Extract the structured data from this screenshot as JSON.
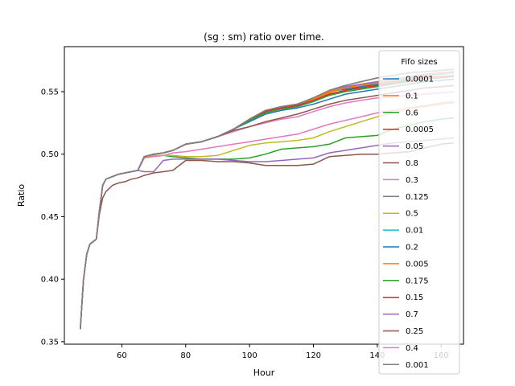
{
  "chart_data": {
    "type": "line",
    "title": "(sg : sm) ratio over time.",
    "xlabel": "Hour",
    "ylabel": "Ratio",
    "xlim": [
      42,
      167
    ],
    "ylim": [
      0.348,
      0.586
    ],
    "xticks": [
      60,
      80,
      100,
      120,
      140,
      160
    ],
    "yticks": [
      0.35,
      0.4,
      0.45,
      0.5,
      0.55
    ],
    "ytick_labels": [
      "0.35",
      "0.40",
      "0.45",
      "0.50",
      "0.55"
    ],
    "grid": false,
    "legend_title": "Fifo sizes",
    "legend_position": "right",
    "x": [
      47,
      48,
      49,
      50,
      52,
      53,
      54,
      55,
      57,
      59,
      61,
      63,
      65,
      67,
      70,
      73,
      76,
      80,
      85,
      90,
      95,
      100,
      105,
      110,
      115,
      120,
      125,
      130,
      135,
      140,
      145,
      150,
      155,
      160,
      164
    ],
    "series": [
      {
        "name": "0.0001",
        "color": "#1f77b4",
        "values": [
          0.36,
          0.4,
          0.42,
          0.428,
          0.432,
          0.455,
          0.475,
          0.48,
          0.482,
          0.484,
          0.485,
          0.486,
          0.487,
          0.498,
          0.5,
          0.501,
          0.503,
          0.508,
          0.51,
          0.514,
          0.52,
          0.528,
          0.535,
          0.538,
          0.54,
          0.545,
          0.55,
          0.552,
          0.554,
          0.556,
          0.558,
          0.56,
          0.562,
          0.564,
          0.565
        ]
      },
      {
        "name": "0.1",
        "color": "#ff7f0e",
        "values": [
          0.36,
          0.4,
          0.42,
          0.428,
          0.432,
          0.455,
          0.475,
          0.48,
          0.482,
          0.484,
          0.485,
          0.486,
          0.487,
          0.498,
          0.5,
          0.501,
          0.503,
          0.508,
          0.51,
          0.514,
          0.52,
          0.528,
          0.535,
          0.538,
          0.54,
          0.544,
          0.549,
          0.553,
          0.555,
          0.557,
          0.559,
          0.561,
          0.563,
          0.564,
          0.565
        ]
      },
      {
        "name": "0.6",
        "color": "#2ca02c",
        "values": [
          0.36,
          0.4,
          0.42,
          0.428,
          0.432,
          0.455,
          0.475,
          0.48,
          0.482,
          0.484,
          0.485,
          0.486,
          0.487,
          0.497,
          0.499,
          0.499,
          0.498,
          0.497,
          0.496,
          0.496,
          0.496,
          0.497,
          0.5,
          0.504,
          0.505,
          0.506,
          0.508,
          0.513,
          0.514,
          0.515,
          0.52,
          0.523,
          0.526,
          0.528,
          0.529
        ]
      },
      {
        "name": "0.0005",
        "color": "#d62728",
        "values": [
          0.36,
          0.4,
          0.42,
          0.428,
          0.432,
          0.455,
          0.475,
          0.48,
          0.482,
          0.484,
          0.485,
          0.486,
          0.487,
          0.498,
          0.5,
          0.501,
          0.503,
          0.508,
          0.51,
          0.514,
          0.52,
          0.528,
          0.535,
          0.538,
          0.54,
          0.545,
          0.55,
          0.553,
          0.555,
          0.557,
          0.559,
          0.561,
          0.563,
          0.565,
          0.566
        ]
      },
      {
        "name": "0.05",
        "color": "#9467bd",
        "values": [
          0.36,
          0.4,
          0.42,
          0.428,
          0.432,
          0.455,
          0.475,
          0.48,
          0.482,
          0.484,
          0.485,
          0.486,
          0.487,
          0.498,
          0.5,
          0.501,
          0.503,
          0.508,
          0.51,
          0.514,
          0.52,
          0.528,
          0.535,
          0.538,
          0.54,
          0.545,
          0.551,
          0.554,
          0.556,
          0.558,
          0.56,
          0.562,
          0.564,
          0.565,
          0.566
        ]
      },
      {
        "name": "0.8",
        "color": "#8c564b",
        "values": [
          0.36,
          0.4,
          0.42,
          0.428,
          0.432,
          0.452,
          0.465,
          0.47,
          0.475,
          0.477,
          0.478,
          0.48,
          0.481,
          0.483,
          0.485,
          0.486,
          0.487,
          0.495,
          0.495,
          0.494,
          0.494,
          0.493,
          0.491,
          0.491,
          0.491,
          0.492,
          0.498,
          0.499,
          0.5,
          0.5,
          0.501,
          0.502,
          0.505,
          0.508,
          0.509
        ]
      },
      {
        "name": "0.3",
        "color": "#e377c2",
        "values": [
          0.36,
          0.4,
          0.42,
          0.428,
          0.432,
          0.455,
          0.475,
          0.48,
          0.482,
          0.484,
          0.485,
          0.486,
          0.487,
          0.498,
          0.5,
          0.501,
          0.503,
          0.508,
          0.51,
          0.514,
          0.518,
          0.522,
          0.525,
          0.528,
          0.53,
          0.534,
          0.538,
          0.541,
          0.543,
          0.545,
          0.546,
          0.547,
          0.548,
          0.549,
          0.55
        ]
      },
      {
        "name": "0.125",
        "color": "#7f7f7f",
        "values": [
          0.36,
          0.4,
          0.42,
          0.428,
          0.432,
          0.455,
          0.475,
          0.48,
          0.482,
          0.484,
          0.485,
          0.486,
          0.487,
          0.498,
          0.5,
          0.501,
          0.503,
          0.508,
          0.51,
          0.514,
          0.52,
          0.528,
          0.535,
          0.538,
          0.54,
          0.545,
          0.551,
          0.555,
          0.558,
          0.561,
          0.563,
          0.565,
          0.566,
          0.567,
          0.568
        ]
      },
      {
        "name": "0.5",
        "color": "#bcbd22",
        "values": [
          0.36,
          0.4,
          0.42,
          0.428,
          0.432,
          0.455,
          0.475,
          0.48,
          0.482,
          0.484,
          0.485,
          0.486,
          0.487,
          0.497,
          0.499,
          0.499,
          0.499,
          0.498,
          0.498,
          0.499,
          0.503,
          0.507,
          0.509,
          0.51,
          0.511,
          0.513,
          0.518,
          0.522,
          0.526,
          0.53,
          0.533,
          0.536,
          0.538,
          0.54,
          0.541
        ]
      },
      {
        "name": "0.01",
        "color": "#17becf",
        "values": [
          0.36,
          0.4,
          0.42,
          0.428,
          0.432,
          0.455,
          0.475,
          0.48,
          0.482,
          0.484,
          0.485,
          0.486,
          0.487,
          0.498,
          0.5,
          0.501,
          0.503,
          0.508,
          0.51,
          0.514,
          0.52,
          0.528,
          0.535,
          0.538,
          0.54,
          0.545,
          0.55,
          0.553,
          0.555,
          0.557,
          0.559,
          0.561,
          0.563,
          0.564,
          0.565
        ]
      },
      {
        "name": "0.2",
        "color": "#1f77b4",
        "values": [
          0.36,
          0.4,
          0.42,
          0.428,
          0.432,
          0.455,
          0.475,
          0.48,
          0.482,
          0.484,
          0.485,
          0.486,
          0.487,
          0.498,
          0.5,
          0.501,
          0.503,
          0.508,
          0.51,
          0.514,
          0.52,
          0.526,
          0.532,
          0.535,
          0.537,
          0.54,
          0.544,
          0.548,
          0.55,
          0.552,
          0.554,
          0.556,
          0.558,
          0.559,
          0.56
        ]
      },
      {
        "name": "0.005",
        "color": "#ff7f0e",
        "values": [
          0.36,
          0.4,
          0.42,
          0.428,
          0.432,
          0.455,
          0.475,
          0.48,
          0.482,
          0.484,
          0.485,
          0.486,
          0.487,
          0.498,
          0.5,
          0.501,
          0.503,
          0.508,
          0.51,
          0.514,
          0.52,
          0.528,
          0.535,
          0.538,
          0.54,
          0.545,
          0.55,
          0.553,
          0.555,
          0.557,
          0.559,
          0.561,
          0.563,
          0.565,
          0.566
        ]
      },
      {
        "name": "0.175",
        "color": "#2ca02c",
        "values": [
          0.36,
          0.4,
          0.42,
          0.428,
          0.432,
          0.455,
          0.475,
          0.48,
          0.482,
          0.484,
          0.485,
          0.486,
          0.487,
          0.498,
          0.5,
          0.501,
          0.503,
          0.508,
          0.51,
          0.514,
          0.52,
          0.527,
          0.533,
          0.536,
          0.538,
          0.542,
          0.547,
          0.55,
          0.552,
          0.554,
          0.556,
          0.558,
          0.56,
          0.561,
          0.562
        ]
      },
      {
        "name": "0.15",
        "color": "#d62728",
        "values": [
          0.36,
          0.4,
          0.42,
          0.428,
          0.432,
          0.455,
          0.475,
          0.48,
          0.482,
          0.484,
          0.485,
          0.486,
          0.487,
          0.498,
          0.5,
          0.501,
          0.503,
          0.508,
          0.51,
          0.514,
          0.52,
          0.528,
          0.534,
          0.537,
          0.539,
          0.543,
          0.548,
          0.551,
          0.553,
          0.555,
          0.557,
          0.559,
          0.561,
          0.562,
          0.563
        ]
      },
      {
        "name": "0.7",
        "color": "#9467bd",
        "values": [
          0.36,
          0.4,
          0.42,
          0.428,
          0.432,
          0.455,
          0.475,
          0.48,
          0.482,
          0.484,
          0.485,
          0.486,
          0.487,
          0.486,
          0.486,
          0.495,
          0.496,
          0.496,
          0.496,
          0.496,
          0.495,
          0.494,
          0.494,
          0.495,
          0.496,
          0.497,
          0.501,
          0.503,
          0.505,
          0.507,
          0.509,
          0.51,
          0.511,
          0.512,
          0.513
        ]
      },
      {
        "name": "0.25",
        "color": "#8c564b",
        "values": [
          0.36,
          0.4,
          0.42,
          0.428,
          0.432,
          0.455,
          0.475,
          0.48,
          0.482,
          0.484,
          0.485,
          0.486,
          0.487,
          0.498,
          0.5,
          0.501,
          0.503,
          0.508,
          0.51,
          0.514,
          0.519,
          0.522,
          0.526,
          0.529,
          0.532,
          0.536,
          0.54,
          0.543,
          0.545,
          0.547,
          0.549,
          0.551,
          0.553,
          0.554,
          0.555
        ]
      },
      {
        "name": "0.4",
        "color": "#e377c2",
        "values": [
          0.36,
          0.4,
          0.42,
          0.428,
          0.432,
          0.455,
          0.475,
          0.48,
          0.482,
          0.484,
          0.485,
          0.486,
          0.487,
          0.497,
          0.498,
          0.499,
          0.501,
          0.502,
          0.504,
          0.506,
          0.508,
          0.51,
          0.512,
          0.514,
          0.516,
          0.52,
          0.524,
          0.527,
          0.53,
          0.533,
          0.535,
          0.537,
          0.539,
          0.541,
          0.542
        ]
      },
      {
        "name": "0.001",
        "color": "#7f7f7f",
        "values": [
          0.36,
          0.4,
          0.42,
          0.428,
          0.432,
          0.455,
          0.475,
          0.48,
          0.482,
          0.484,
          0.485,
          0.486,
          0.487,
          0.498,
          0.5,
          0.501,
          0.503,
          0.508,
          0.51,
          0.514,
          0.52,
          0.528,
          0.535,
          0.538,
          0.54,
          0.545,
          0.551,
          0.555,
          0.558,
          0.561,
          0.563,
          0.565,
          0.566,
          0.567,
          0.568
        ]
      }
    ]
  }
}
